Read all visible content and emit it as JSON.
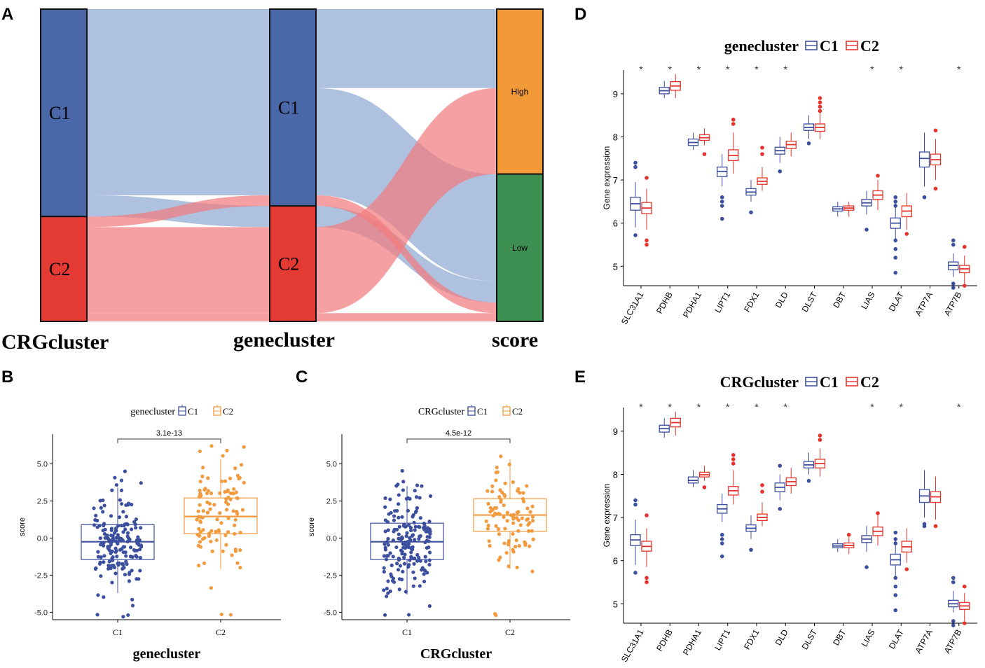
{
  "panel_letters": [
    "A",
    "B",
    "C",
    "D",
    "E"
  ],
  "colors": {
    "c1_dark": "#4a67a8",
    "c1_light": "#8fa9d2",
    "c2_dark": "#e43a34",
    "c2_light": "#f17c7e",
    "c1_box_blue": "#3c4f9e",
    "c2_box_orange": "#f19a3e",
    "c2_box_red": "#e6332b",
    "high": "#f29a38",
    "low": "#3e8f52"
  },
  "chart_data": [
    {
      "panel": "A",
      "type": "alluvial",
      "axes": [
        "CRGcluster",
        "genecluster",
        "score"
      ],
      "nodes": {
        "CRGcluster": [
          {
            "name": "C1",
            "weight": 176
          },
          {
            "name": "C2",
            "weight": 89
          }
        ],
        "genecluster": [
          {
            "name": "C1",
            "weight": 167
          },
          {
            "name": "C2",
            "weight": 98
          }
        ],
        "score": [
          {
            "name": "High",
            "weight": 140
          },
          {
            "name": "Low",
            "weight": 125
          }
        ]
      },
      "flows": [
        {
          "from_crg": "C1",
          "gene": "C1",
          "score": "High",
          "weight": 67,
          "color": "C1"
        },
        {
          "from_crg": "C1",
          "gene": "C1",
          "score": "Low",
          "weight": 91,
          "color": "C1"
        },
        {
          "from_crg": "C1",
          "gene": "C2",
          "score": "Low",
          "weight": 18,
          "color": "C1"
        },
        {
          "from_crg": "C2",
          "gene": "C1",
          "score": "Low",
          "weight": 9,
          "color": "C2"
        },
        {
          "from_crg": "C2",
          "gene": "C2",
          "score": "High",
          "weight": 73,
          "color": "C2"
        },
        {
          "from_crg": "C2",
          "gene": "C2",
          "score": "Low",
          "weight": 7,
          "color": "C2"
        }
      ]
    },
    {
      "panel": "B",
      "type": "box",
      "title": "genecluster",
      "legend": [
        "C1",
        "C2"
      ],
      "categories": [
        "C1",
        "C2"
      ],
      "xlabel": "genecluster",
      "ylabel": "score",
      "ylim": [
        -5.5,
        7.0
      ],
      "yticks": [
        "-5.0",
        "-2.5",
        "0.0",
        "2.5",
        "5.0"
      ],
      "pvalue": "3.1e-13",
      "boxes": [
        {
          "q1": -1.45,
          "median": -0.25,
          "q3": 0.9,
          "lo": -3.7,
          "hi": 3.4,
          "n": 170,
          "seed": 11
        },
        {
          "q1": 0.3,
          "median": 1.45,
          "q3": 2.7,
          "lo": -2.1,
          "hi": 5.3,
          "n": 110,
          "seed": 23
        }
      ]
    },
    {
      "panel": "C",
      "type": "box",
      "title": "CRGcluster",
      "legend": [
        "C1",
        "C2"
      ],
      "categories": [
        "C1",
        "C2"
      ],
      "xlabel": "CRGcluster",
      "ylabel": "score",
      "ylim": [
        -5.5,
        7.0
      ],
      "yticks": [
        "-5.0",
        "-2.5",
        "0.0",
        "2.5",
        "5.0"
      ],
      "pvalue": "4.5e-12",
      "boxes": [
        {
          "q1": -1.45,
          "median": -0.25,
          "q3": 1.0,
          "lo": -3.8,
          "hi": 3.5,
          "n": 180,
          "seed": 37
        },
        {
          "q1": 0.45,
          "median": 1.55,
          "q3": 2.65,
          "lo": -2.1,
          "hi": 5.3,
          "n": 95,
          "seed": 41
        }
      ]
    },
    {
      "panel": "D",
      "type": "grouped-box",
      "title": "genecluster",
      "legend": [
        "C1",
        "C2"
      ],
      "ylabel": "Gene expression",
      "ylim": [
        4.55,
        9.55
      ],
      "yticks": [
        "5",
        "6",
        "7",
        "8",
        "9"
      ],
      "genes": [
        "SLC31A1",
        "PDHB",
        "PDHA1",
        "LIPT1",
        "FDX1",
        "DLD",
        "DLST",
        "DBT",
        "LIAS",
        "DLAT",
        "ATP7A",
        "ATP7B"
      ],
      "significance": [
        "*",
        "*",
        "*",
        "*",
        "*",
        "*",
        "",
        "",
        "*",
        "*",
        "",
        "*"
      ],
      "series": [
        {
          "name": "C1",
          "boxes": [
            [
              5.9,
              6.3,
              6.45,
              6.6,
              6.95
            ],
            [
              8.9,
              9.0,
              9.07,
              9.15,
              9.3
            ],
            [
              7.7,
              7.8,
              7.87,
              7.95,
              8.1
            ],
            [
              6.85,
              7.08,
              7.2,
              7.3,
              7.6
            ],
            [
              6.5,
              6.65,
              6.72,
              6.8,
              7.0
            ],
            [
              7.4,
              7.6,
              7.68,
              7.76,
              8.0
            ],
            [
              7.95,
              8.15,
              8.22,
              8.3,
              8.5
            ],
            [
              6.15,
              6.28,
              6.33,
              6.38,
              6.5
            ],
            [
              6.2,
              6.4,
              6.47,
              6.55,
              6.75
            ],
            [
              5.55,
              5.88,
              6.0,
              6.12,
              6.5
            ],
            [
              6.85,
              7.3,
              7.5,
              7.65,
              8.1
            ],
            [
              4.75,
              4.92,
              5.02,
              5.1,
              5.3
            ]
          ]
        },
        {
          "name": "C2",
          "boxes": [
            [
              5.85,
              6.22,
              6.35,
              6.48,
              6.8
            ],
            [
              8.9,
              9.08,
              9.18,
              9.28,
              9.45
            ],
            [
              7.8,
              7.92,
              7.98,
              8.05,
              8.2
            ],
            [
              7.15,
              7.45,
              7.57,
              7.7,
              8.1
            ],
            [
              6.75,
              6.9,
              6.97,
              7.05,
              7.3
            ],
            [
              7.55,
              7.73,
              7.82,
              7.9,
              8.1
            ],
            [
              7.95,
              8.13,
              8.22,
              8.3,
              8.55
            ],
            [
              6.15,
              6.3,
              6.35,
              6.4,
              6.5
            ],
            [
              6.3,
              6.55,
              6.65,
              6.75,
              7.0
            ],
            [
              5.85,
              6.15,
              6.28,
              6.4,
              6.7
            ],
            [
              7.0,
              7.35,
              7.47,
              7.6,
              7.95
            ],
            [
              4.6,
              4.85,
              4.94,
              5.02,
              5.25
            ]
          ]
        }
      ],
      "outliers": {
        "C1": [
          [
            7.4,
            7.3,
            5.72
          ],
          [],
          [],
          [
            6.6,
            6.5,
            6.4,
            6.1
          ],
          [
            6.25
          ],
          [
            7.2
          ],
          [
            7.85
          ],
          [],
          [
            5.85
          ],
          [
            6.6,
            6.5,
            6.4,
            5.6,
            5.4,
            5.2,
            4.85
          ],
          [
            6.6
          ],
          [
            5.6,
            5.5,
            4.6,
            4.5
          ]
        ],
        "C2": [
          [
            7.05,
            5.6,
            5.5
          ],
          [],
          [
            7.6
          ],
          [
            8.4,
            8.3
          ],
          [
            7.75,
            7.6
          ],
          [],
          [
            8.9,
            8.8,
            8.7,
            8.6
          ],
          [],
          [
            7.1
          ],
          [
            5.75
          ],
          [
            8.15,
            6.8
          ],
          [
            5.45,
            4.55
          ]
        ]
      }
    },
    {
      "panel": "E",
      "type": "grouped-box",
      "title": "CRGcluster",
      "legend": [
        "C1",
        "C2"
      ],
      "ylabel": "Gene expression",
      "ylim": [
        4.55,
        9.55
      ],
      "yticks": [
        "5",
        "6",
        "7",
        "8",
        "9"
      ],
      "genes": [
        "SLC31A1",
        "PDHB",
        "PDHA1",
        "LIPT1",
        "FDX1",
        "DLD",
        "DLST",
        "DBT",
        "LIAS",
        "DLAT",
        "ATP7A",
        "ATP7B"
      ],
      "significance": [
        "*",
        "*",
        "*",
        "*",
        "*",
        "*",
        "",
        "",
        "*",
        "*",
        "",
        "*"
      ],
      "series": [
        {
          "name": "C1",
          "boxes": [
            [
              5.9,
              6.35,
              6.48,
              6.6,
              6.95
            ],
            [
              8.85,
              8.98,
              9.06,
              9.14,
              9.3
            ],
            [
              7.7,
              7.8,
              7.86,
              7.94,
              8.1
            ],
            [
              6.9,
              7.1,
              7.2,
              7.3,
              7.55
            ],
            [
              6.5,
              6.68,
              6.75,
              6.83,
              7.05
            ],
            [
              7.4,
              7.6,
              7.7,
              7.8,
              8.0
            ],
            [
              8.0,
              8.15,
              8.22,
              8.3,
              8.5
            ],
            [
              6.2,
              6.3,
              6.34,
              6.39,
              6.5
            ],
            [
              6.2,
              6.42,
              6.5,
              6.58,
              6.8
            ],
            [
              5.6,
              5.9,
              6.02,
              6.15,
              6.5
            ],
            [
              7.0,
              7.35,
              7.5,
              7.65,
              8.1
            ],
            [
              4.8,
              4.93,
              5.0,
              5.08,
              5.3
            ]
          ]
        },
        {
          "name": "C2",
          "boxes": [
            [
              5.85,
              6.22,
              6.33,
              6.45,
              6.75
            ],
            [
              8.9,
              9.1,
              9.2,
              9.3,
              9.45
            ],
            [
              7.85,
              7.94,
              7.99,
              8.05,
              8.2
            ],
            [
              7.3,
              7.52,
              7.62,
              7.72,
              8.1
            ],
            [
              6.8,
              6.93,
              7.0,
              7.08,
              7.35
            ],
            [
              7.55,
              7.74,
              7.83,
              7.92,
              8.15
            ],
            [
              7.95,
              8.15,
              8.25,
              8.35,
              8.6
            ],
            [
              6.15,
              6.3,
              6.35,
              6.41,
              6.55
            ],
            [
              6.35,
              6.58,
              6.68,
              6.78,
              7.05
            ],
            [
              5.95,
              6.2,
              6.32,
              6.45,
              6.75
            ],
            [
              6.95,
              7.35,
              7.48,
              7.6,
              7.95
            ],
            [
              4.6,
              4.87,
              4.95,
              5.03,
              5.25
            ]
          ]
        }
      ],
      "outliers": {
        "C1": [
          [
            7.4,
            7.3,
            5.72
          ],
          [],
          [],
          [
            6.6,
            6.5,
            6.4,
            6.1
          ],
          [
            6.25
          ],
          [
            8.2,
            7.2
          ],
          [
            7.85
          ],
          [],
          [
            5.85
          ],
          [
            6.65,
            6.5,
            6.4,
            5.6,
            5.4,
            5.2,
            4.85
          ],
          [
            6.85,
            6.8
          ],
          [
            5.6,
            5.5,
            4.6,
            4.5
          ]
        ],
        "C2": [
          [
            7.05,
            5.6,
            5.5
          ],
          [],
          [
            7.7
          ],
          [
            8.45,
            8.35,
            8.25
          ],
          [
            7.75,
            7.6
          ],
          [],
          [
            8.9,
            8.8
          ],
          [
            6.6
          ],
          [
            7.1
          ],
          [
            5.8
          ],
          [
            6.8
          ],
          [
            5.4,
            4.55
          ]
        ]
      }
    }
  ]
}
